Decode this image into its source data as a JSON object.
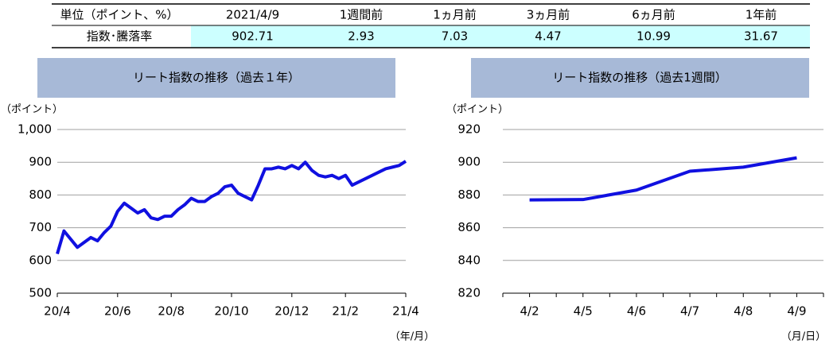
{
  "table": {
    "header": [
      "単位（ポイント、%）",
      "2021/4/9",
      "1週間前",
      "1ヵ月前",
      "3ヵ月前",
      "6ヵ月前",
      "1年前"
    ],
    "rows": [
      [
        "指数･騰落率",
        "902.71",
        "2.93",
        "7.03",
        "4.47",
        "10.99",
        "31.67"
      ]
    ]
  },
  "chart_data": [
    {
      "type": "line",
      "title": "リート指数の推移（過去１年）",
      "y_label": "（ポイント）",
      "x_label": "（年/月）",
      "categories": [
        "20/4",
        null,
        null,
        null,
        null,
        null,
        null,
        null,
        null,
        "20/6",
        null,
        null,
        null,
        null,
        null,
        null,
        null,
        "20/8",
        null,
        null,
        null,
        null,
        null,
        null,
        null,
        null,
        "20/10",
        null,
        null,
        null,
        null,
        null,
        null,
        null,
        null,
        "20/12",
        null,
        null,
        null,
        null,
        null,
        null,
        null,
        "21/2",
        null,
        null,
        null,
        null,
        null,
        null,
        null,
        null,
        "21/4"
      ],
      "series": [
        {
          "color": "#1010e0",
          "values": [
            620,
            690,
            665,
            640,
            655,
            670,
            660,
            685,
            705,
            750,
            775,
            760,
            745,
            755,
            730,
            725,
            735,
            735,
            755,
            770,
            790,
            780,
            780,
            795,
            805,
            825,
            830,
            805,
            795,
            785,
            830,
            880,
            880,
            885,
            880,
            890,
            880,
            900,
            875,
            860,
            855,
            860,
            850,
            860,
            830,
            840,
            850,
            860,
            870,
            880,
            885,
            890,
            903
          ]
        }
      ],
      "ylim": [
        500,
        1000
      ],
      "yticks": [
        500,
        600,
        700,
        800,
        900,
        {
          "value": 1000,
          "label": "1,000"
        }
      ],
      "grid": true
    },
    {
      "type": "line",
      "title": "リート指数の推移（過去1週間）",
      "y_label": "（ポイント）",
      "x_label": "（月/日）",
      "categories": [
        "4/2",
        "4/5",
        "4/6",
        "4/7",
        "4/8",
        "4/9"
      ],
      "series": [
        {
          "color": "#1010e0",
          "values": [
            877.0,
            877.2,
            883.0,
            894.5,
            897.0,
            902.71
          ]
        }
      ],
      "ylim": [
        820,
        920
      ],
      "yticks": [
        820,
        840,
        860,
        880,
        900,
        920
      ],
      "grid": true
    }
  ]
}
